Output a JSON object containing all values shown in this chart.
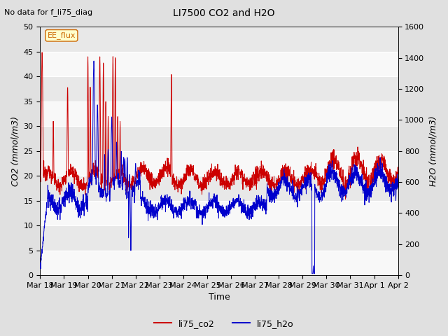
{
  "title": "LI7500 CO2 and H2O",
  "subtitle": "No data for f_li75_diag",
  "xlabel": "Time",
  "ylabel_left": "CO2 (mmol/m3)",
  "ylabel_right": "H2O (mmol/m3)",
  "ylim_left": [
    0,
    50
  ],
  "ylim_right": [
    0,
    1600
  ],
  "yticks_left": [
    0,
    5,
    10,
    15,
    20,
    25,
    30,
    35,
    40,
    45,
    50
  ],
  "yticks_right": [
    0,
    200,
    400,
    600,
    800,
    1000,
    1200,
    1400,
    1600
  ],
  "color_co2": "#cc0000",
  "color_h2o": "#0000cc",
  "legend_label_co2": "li75_co2",
  "legend_label_h2o": "li75_h2o",
  "annotation_text": "EE_flux",
  "annotation_color": "#cc6600",
  "annotation_bg": "#ffffcc",
  "background_color": "#e0e0e0",
  "plot_bg_light": "#f0f0f0",
  "plot_bg_dark": "#dcdcdc",
  "grid_color": "#c0c0c0",
  "tick_labels": [
    "Mar 18",
    "Mar 19",
    "Mar 20",
    "Mar 21",
    "Mar 22",
    "Mar 23",
    "Mar 24",
    "Mar 25",
    "Mar 26",
    "Mar 27",
    "Mar 28",
    "Mar 29",
    "Mar 30",
    "Mar 31",
    "Apr 1",
    "Apr 2"
  ]
}
